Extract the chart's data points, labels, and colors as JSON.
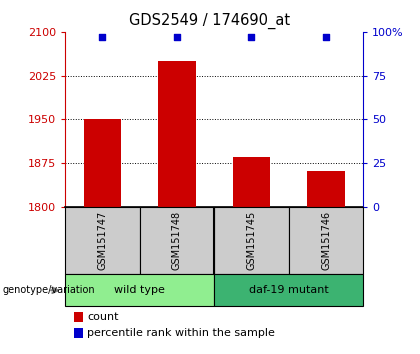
{
  "title": "GDS2549 / 174690_at",
  "samples": [
    "GSM151747",
    "GSM151748",
    "GSM151745",
    "GSM151746"
  ],
  "counts": [
    1950,
    2050,
    1885,
    1862
  ],
  "percentiles": [
    97,
    97,
    97,
    97
  ],
  "ylim_left": [
    1800,
    2100
  ],
  "ylim_right": [
    0,
    100
  ],
  "yticks_left": [
    1800,
    1875,
    1950,
    2025,
    2100
  ],
  "yticks_right": [
    0,
    25,
    50,
    75,
    100
  ],
  "groups": [
    {
      "label": "wild type",
      "samples": [
        0,
        1
      ],
      "color": "#90EE90"
    },
    {
      "label": "daf-19 mutant",
      "samples": [
        2,
        3
      ],
      "color": "#3CB371"
    }
  ],
  "bar_color": "#CC0000",
  "dot_color": "#0000CC",
  "bar_width": 0.5,
  "left_axis_color": "#CC0000",
  "right_axis_color": "#0000CC",
  "tick_bg_color": "#CCCCCC",
  "grid_color": "black",
  "genotext": "genotype/variation"
}
